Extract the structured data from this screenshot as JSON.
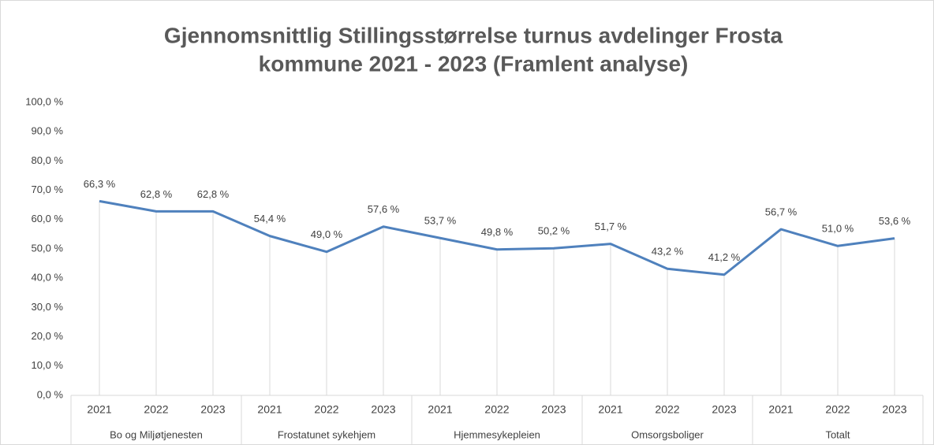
{
  "chart_data": {
    "type": "line",
    "title": [
      "Gjennomsnittlig Stillingsstørrelse turnus avdelinger Frosta",
      "kommune 2021 - 2023 (Framlent analyse)"
    ],
    "categories": [
      "2021",
      "2022",
      "2023",
      "2021",
      "2022",
      "2023",
      "2021",
      "2022",
      "2023",
      "2021",
      "2022",
      "2023",
      "2021",
      "2022",
      "2023"
    ],
    "groups": [
      "Bo og Miljøtjenesten",
      "Frostatunet sykehjem",
      "Hjemmesykepleien",
      "Omsorgsboliger",
      "Totalt"
    ],
    "values": [
      66.3,
      62.8,
      62.8,
      54.4,
      49.0,
      57.6,
      53.7,
      49.8,
      50.2,
      51.7,
      43.2,
      41.2,
      56.7,
      51.0,
      53.6
    ],
    "value_labels": [
      "66,3 %",
      "62,8 %",
      "62,8 %",
      "54,4 %",
      "49,0 %",
      "57,6 %",
      "53,7 %",
      "49,8 %",
      "50,2 %",
      "51,7 %",
      "43,2 %",
      "41,2 %",
      "56,7 %",
      "51,0 %",
      "53,6 %"
    ],
    "color": "#4f81bd",
    "ylim": [
      0,
      100
    ],
    "yticks": [
      {
        "value": 0,
        "label": "0,0 %"
      },
      {
        "value": 10,
        "label": "10,0 %"
      },
      {
        "value": 20,
        "label": "20,0 %"
      },
      {
        "value": 30,
        "label": "30,0 %"
      },
      {
        "value": 40,
        "label": "40,0 %"
      },
      {
        "value": 50,
        "label": "50,0 %"
      },
      {
        "value": 60,
        "label": "60,0 %"
      },
      {
        "value": 70,
        "label": "70,0 %"
      },
      {
        "value": 80,
        "label": "80,0 %"
      },
      {
        "value": 90,
        "label": "90,0 %"
      },
      {
        "value": 100,
        "label": "100,0 %"
      }
    ],
    "drop_lines": true
  }
}
